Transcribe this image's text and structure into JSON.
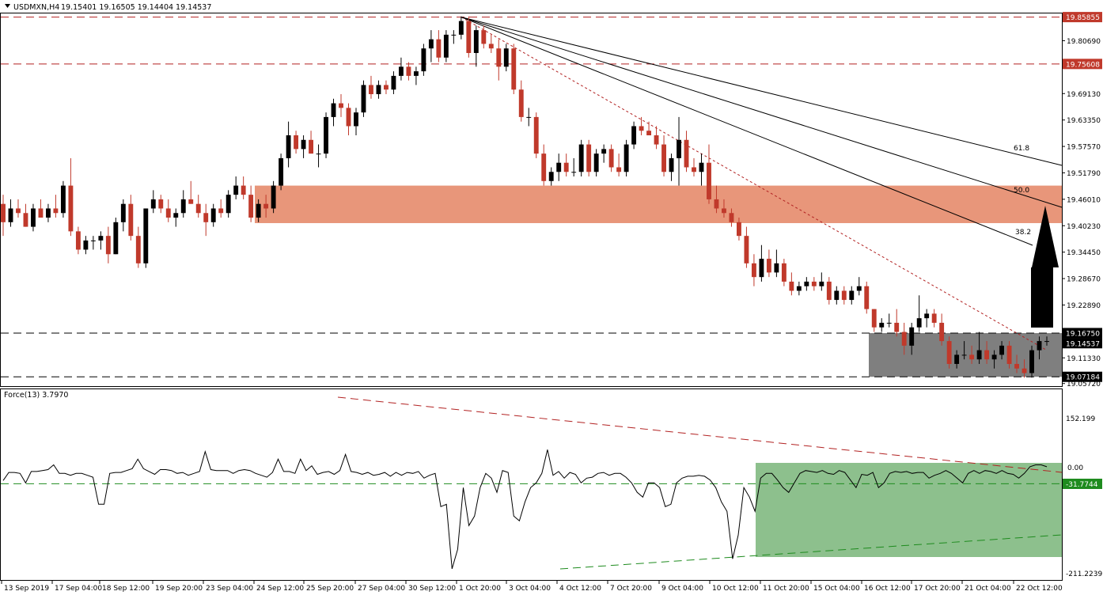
{
  "header": {
    "symbol": "USDMXN,H4",
    "ohlc": "19.15401 19.16505 19.14404 19.14537"
  },
  "indicator": {
    "label": "Force(13) 3.7970",
    "scale_labels": [
      "152.199",
      "0.00",
      "-211.2239"
    ],
    "level_label": "-31.7744",
    "level": -31.7744,
    "top": 152.199,
    "bottom": -211.2239
  },
  "colors": {
    "bull": "#000000",
    "bear": "#c0392b",
    "resistance_zone": "#e8967a",
    "support_zone": "#7f7f7f",
    "force_zone": "#8dc08d",
    "level_red": "#b22222",
    "level_green": "#1e8b1e",
    "price_tag_bg": "#000000",
    "highlight_tag_bg": "#c0392b"
  },
  "chart_data": {
    "type": "candlestick",
    "symbol": "USDMXN",
    "timeframe": "H4",
    "y_ticks": [
      "19.85855",
      "19.80690",
      "19.75608",
      "19.69130",
      "19.63350",
      "19.57570",
      "19.51790",
      "19.46010",
      "19.40230",
      "19.34450",
      "19.28670",
      "19.22890",
      "19.16750",
      "19.14537",
      "19.11330",
      "19.07184",
      "19.05720"
    ],
    "ylim": [
      19.0515,
      19.8665
    ],
    "x_ticks": [
      "13 Sep 2019",
      "17 Sep 04:00",
      "18 Sep 12:00",
      "19 Sep 20:00",
      "23 Sep 04:00",
      "24 Sep 12:00",
      "25 Sep 20:00",
      "27 Sep 04:00",
      "30 Sep 12:00",
      "1 Oct 20:00",
      "3 Oct 04:00",
      "4 Oct 12:00",
      "7 Oct 20:00",
      "9 Oct 04:00",
      "10 Oct 12:00",
      "11 Oct 20:00",
      "15 Oct 04:00",
      "16 Oct 12:00",
      "17 Oct 20:00",
      "21 Oct 04:00",
      "22 Oct 12:00"
    ],
    "horizontal_levels": [
      {
        "price": 19.85855,
        "label": "19.85855",
        "style": "red-dashed"
      },
      {
        "price": 19.75608,
        "label": "19.75608",
        "style": "red-dashed"
      },
      {
        "price": 19.1675,
        "label": "19.16750",
        "style": "black-dashed"
      },
      {
        "price": 19.07184,
        "label": "19.07184",
        "style": "black-dashed"
      }
    ],
    "current_price": 19.14537,
    "zones": [
      {
        "name": "resistance",
        "top": 19.49,
        "bottom": 19.408,
        "from": "24 Sep 12:00"
      },
      {
        "name": "support",
        "top": 19.1675,
        "bottom": 19.07184,
        "from": "16 Oct 12:00"
      }
    ],
    "fibonacci_fan": {
      "origin": "1 Oct 20:00",
      "origin_price": 19.85855,
      "levels": [
        "38.2",
        "50.0",
        "61.8"
      ]
    },
    "trendline": {
      "from_price": 19.85855,
      "to_price": 19.13,
      "style": "red-dotted"
    },
    "arrow": {
      "direction": "up"
    },
    "candles": [
      [
        19.45,
        19.47,
        19.38,
        19.41
      ],
      [
        19.41,
        19.46,
        19.4,
        19.44
      ],
      [
        19.44,
        19.46,
        19.42,
        19.43
      ],
      [
        19.43,
        19.45,
        19.4,
        19.4
      ],
      [
        19.4,
        19.45,
        19.39,
        19.44
      ],
      [
        19.44,
        19.46,
        19.42,
        19.42
      ],
      [
        19.42,
        19.45,
        19.41,
        19.44
      ],
      [
        19.44,
        19.47,
        19.42,
        19.43
      ],
      [
        19.43,
        19.5,
        19.42,
        19.49
      ],
      [
        19.49,
        19.55,
        19.38,
        19.39
      ],
      [
        19.39,
        19.4,
        19.34,
        19.35
      ],
      [
        19.35,
        19.38,
        19.34,
        19.37
      ],
      [
        19.37,
        19.38,
        19.35,
        19.37
      ],
      [
        19.37,
        19.39,
        19.35,
        19.38
      ],
      [
        19.38,
        19.4,
        19.32,
        19.34
      ],
      [
        19.34,
        19.42,
        19.34,
        19.41
      ],
      [
        19.41,
        19.46,
        19.39,
        19.45
      ],
      [
        19.45,
        19.47,
        19.37,
        19.38
      ],
      [
        19.38,
        19.4,
        19.31,
        19.32
      ],
      [
        19.32,
        19.44,
        19.31,
        19.44
      ],
      [
        19.44,
        19.48,
        19.43,
        19.46
      ],
      [
        19.46,
        19.47,
        19.43,
        19.44
      ],
      [
        19.44,
        19.46,
        19.41,
        19.42
      ],
      [
        19.42,
        19.44,
        19.4,
        19.43
      ],
      [
        19.43,
        19.48,
        19.42,
        19.46
      ],
      [
        19.46,
        19.5,
        19.45,
        19.45
      ],
      [
        19.45,
        19.47,
        19.42,
        19.43
      ],
      [
        19.43,
        19.45,
        19.38,
        19.41
      ],
      [
        19.41,
        19.45,
        19.4,
        19.44
      ],
      [
        19.44,
        19.46,
        19.42,
        19.43
      ],
      [
        19.43,
        19.48,
        19.42,
        19.47
      ],
      [
        19.47,
        19.51,
        19.46,
        19.49
      ],
      [
        19.49,
        19.51,
        19.46,
        19.47
      ],
      [
        19.47,
        19.49,
        19.41,
        19.42
      ],
      [
        19.42,
        19.46,
        19.41,
        19.45
      ],
      [
        19.45,
        19.47,
        19.42,
        19.44
      ],
      [
        19.44,
        19.5,
        19.43,
        19.49
      ],
      [
        19.49,
        19.56,
        19.48,
        19.55
      ],
      [
        19.55,
        19.63,
        19.53,
        19.6
      ],
      [
        19.6,
        19.61,
        19.56,
        19.57
      ],
      [
        19.57,
        19.6,
        19.55,
        19.59
      ],
      [
        19.59,
        19.61,
        19.56,
        19.56
      ],
      [
        19.56,
        19.58,
        19.53,
        19.56
      ],
      [
        19.56,
        19.65,
        19.55,
        19.64
      ],
      [
        19.64,
        19.68,
        19.62,
        19.67
      ],
      [
        19.67,
        19.69,
        19.64,
        19.66
      ],
      [
        19.66,
        19.67,
        19.6,
        19.62
      ],
      [
        19.62,
        19.66,
        19.6,
        19.65
      ],
      [
        19.65,
        19.72,
        19.64,
        19.71
      ],
      [
        19.71,
        19.73,
        19.68,
        19.69
      ],
      [
        19.69,
        19.72,
        19.68,
        19.71
      ],
      [
        19.71,
        19.72,
        19.69,
        19.7
      ],
      [
        19.7,
        19.74,
        19.69,
        19.73
      ],
      [
        19.73,
        19.77,
        19.72,
        19.75
      ],
      [
        19.75,
        19.76,
        19.72,
        19.73
      ],
      [
        19.73,
        19.75,
        19.71,
        19.74
      ],
      [
        19.74,
        19.8,
        19.73,
        19.79
      ],
      [
        19.79,
        19.83,
        19.76,
        19.81
      ],
      [
        19.81,
        19.83,
        19.76,
        19.77
      ],
      [
        19.77,
        19.83,
        19.76,
        19.82
      ],
      [
        19.82,
        19.83,
        19.8,
        19.82
      ],
      [
        19.82,
        19.86,
        19.81,
        19.85
      ],
      [
        19.85,
        19.86,
        19.77,
        19.78
      ],
      [
        19.78,
        19.84,
        19.75,
        19.83
      ],
      [
        19.83,
        19.84,
        19.79,
        19.8
      ],
      [
        19.8,
        19.82,
        19.78,
        19.79
      ],
      [
        19.79,
        19.81,
        19.72,
        19.75
      ],
      [
        19.75,
        19.8,
        19.74,
        19.79
      ],
      [
        19.79,
        19.8,
        19.69,
        19.7
      ],
      [
        19.7,
        19.72,
        19.63,
        19.64
      ],
      [
        19.64,
        19.66,
        19.62,
        19.64
      ],
      [
        19.64,
        19.65,
        19.55,
        19.56
      ],
      [
        19.56,
        19.58,
        19.49,
        19.5
      ],
      [
        19.5,
        19.53,
        19.49,
        19.52
      ],
      [
        19.52,
        19.56,
        19.5,
        19.54
      ],
      [
        19.54,
        19.56,
        19.51,
        19.52
      ],
      [
        19.52,
        19.55,
        19.51,
        19.52
      ],
      [
        19.52,
        19.59,
        19.51,
        19.58
      ],
      [
        19.58,
        19.59,
        19.51,
        19.52
      ],
      [
        19.52,
        19.57,
        19.51,
        19.56
      ],
      [
        19.56,
        19.58,
        19.54,
        19.57
      ],
      [
        19.57,
        19.58,
        19.52,
        19.53
      ],
      [
        19.53,
        19.56,
        19.51,
        19.52
      ],
      [
        19.52,
        19.59,
        19.51,
        19.58
      ],
      [
        19.58,
        19.63,
        19.57,
        19.62
      ],
      [
        19.62,
        19.64,
        19.6,
        19.61
      ],
      [
        19.61,
        19.63,
        19.6,
        19.6
      ],
      [
        19.6,
        19.62,
        19.57,
        19.58
      ],
      [
        19.58,
        19.6,
        19.51,
        19.52
      ],
      [
        19.52,
        19.56,
        19.5,
        19.55
      ],
      [
        19.55,
        19.64,
        19.49,
        19.59
      ],
      [
        19.59,
        19.61,
        19.52,
        19.53
      ],
      [
        19.53,
        19.55,
        19.51,
        19.52
      ],
      [
        19.52,
        19.56,
        19.49,
        19.54
      ],
      [
        19.54,
        19.58,
        19.45,
        19.46
      ],
      [
        19.46,
        19.49,
        19.43,
        19.44
      ],
      [
        19.44,
        19.46,
        19.42,
        19.43
      ],
      [
        19.43,
        19.44,
        19.4,
        19.41
      ],
      [
        19.41,
        19.42,
        19.37,
        19.38
      ],
      [
        19.38,
        19.4,
        19.31,
        19.32
      ],
      [
        19.32,
        19.34,
        19.27,
        19.29
      ],
      [
        19.29,
        19.36,
        19.28,
        19.33
      ],
      [
        19.33,
        19.35,
        19.29,
        19.3
      ],
      [
        19.3,
        19.35,
        19.29,
        19.32
      ],
      [
        19.32,
        19.33,
        19.27,
        19.28
      ],
      [
        19.28,
        19.3,
        19.25,
        19.26
      ],
      [
        19.26,
        19.28,
        19.25,
        19.27
      ],
      [
        19.27,
        19.29,
        19.26,
        19.28
      ],
      [
        19.28,
        19.29,
        19.26,
        19.27
      ],
      [
        19.27,
        19.3,
        19.26,
        19.28
      ],
      [
        19.28,
        19.29,
        19.23,
        19.24
      ],
      [
        19.24,
        19.27,
        19.23,
        19.26
      ],
      [
        19.26,
        19.27,
        19.23,
        19.24
      ],
      [
        19.24,
        19.27,
        19.23,
        19.26
      ],
      [
        19.26,
        19.29,
        19.25,
        19.27
      ],
      [
        19.27,
        19.28,
        19.21,
        19.22
      ],
      [
        19.22,
        19.22,
        19.17,
        19.18
      ],
      [
        19.18,
        19.2,
        19.17,
        19.19
      ],
      [
        19.19,
        19.21,
        19.18,
        19.19
      ],
      [
        19.19,
        19.22,
        19.16,
        19.17
      ],
      [
        19.17,
        19.19,
        19.12,
        19.14
      ],
      [
        19.14,
        19.19,
        19.12,
        19.18
      ],
      [
        19.18,
        19.25,
        19.17,
        19.2
      ],
      [
        19.2,
        19.22,
        19.18,
        19.21
      ],
      [
        19.21,
        19.22,
        19.18,
        19.19
      ],
      [
        19.19,
        19.21,
        19.14,
        19.15
      ],
      [
        19.15,
        19.16,
        19.09,
        19.1
      ],
      [
        19.1,
        19.13,
        19.09,
        19.12
      ],
      [
        19.12,
        19.15,
        19.11,
        19.12
      ],
      [
        19.12,
        19.14,
        19.1,
        19.11
      ],
      [
        19.11,
        19.17,
        19.1,
        19.13
      ],
      [
        19.13,
        19.15,
        19.1,
        19.11
      ],
      [
        19.11,
        19.13,
        19.09,
        19.12
      ],
      [
        19.12,
        19.15,
        19.11,
        19.14
      ],
      [
        19.14,
        19.15,
        19.09,
        19.1
      ],
      [
        19.1,
        19.12,
        19.08,
        19.09
      ],
      [
        19.09,
        19.11,
        19.07,
        19.08
      ],
      [
        19.08,
        19.14,
        19.07,
        19.13
      ],
      [
        19.13,
        19.16,
        19.11,
        19.15
      ],
      [
        19.15,
        19.16,
        19.14,
        19.15
      ]
    ],
    "force_series": [
      -25,
      -8,
      -8,
      -10,
      -30,
      -6,
      -6,
      -4,
      -2,
      8,
      -10,
      -10,
      -14,
      -10,
      -10,
      -14,
      -18,
      -75,
      -75,
      -10,
      -8,
      -8,
      -4,
      0,
      20,
      0,
      -6,
      -12,
      -2,
      -2,
      -4,
      -10,
      -8,
      -14,
      -10,
      -6,
      36,
      -2,
      -4,
      -4,
      -4,
      -10,
      -4,
      -2,
      -4,
      -10,
      -14,
      -18,
      -8,
      20,
      -6,
      -6,
      -10,
      20,
      -4,
      6,
      -12,
      -8,
      -6,
      -12,
      -4,
      30,
      -6,
      -8,
      -12,
      -8,
      -14,
      -12,
      -8,
      -16,
      -8,
      -14,
      -8,
      -10,
      -6,
      -20,
      -14,
      -10,
      -80,
      -75,
      -211,
      -170,
      -40,
      -120,
      -100,
      -40,
      -10,
      -20,
      -50,
      -4,
      -8,
      -100,
      -110,
      -70,
      -40,
      -30,
      -10,
      40,
      -14,
      -6,
      -20,
      -8,
      -12,
      -30,
      -20,
      -18,
      -10,
      -8,
      -14,
      -10,
      -10,
      -18,
      -30,
      -50,
      -60,
      -30,
      -30,
      -40,
      -80,
      -75,
      -30,
      -20,
      -16,
      -16,
      -14,
      -16,
      -24,
      -40,
      -70,
      -90,
      -190,
      -140,
      -40,
      -60,
      -90,
      -20,
      -10,
      -10,
      -24,
      -40,
      -50,
      -30,
      -10,
      -4,
      -6,
      -8,
      -4,
      -10,
      -12,
      -4,
      -8,
      -24,
      -40,
      -12,
      -14,
      -8,
      -40,
      -30,
      -10,
      -6,
      -8,
      -6,
      -10,
      -8,
      -8,
      -20,
      -14,
      -10,
      -4,
      -10,
      -20,
      -30,
      -10,
      -4,
      -10,
      -4,
      -6,
      -10,
      -4,
      -10,
      -12,
      -20,
      -10,
      4,
      8,
      8,
      4
    ]
  }
}
